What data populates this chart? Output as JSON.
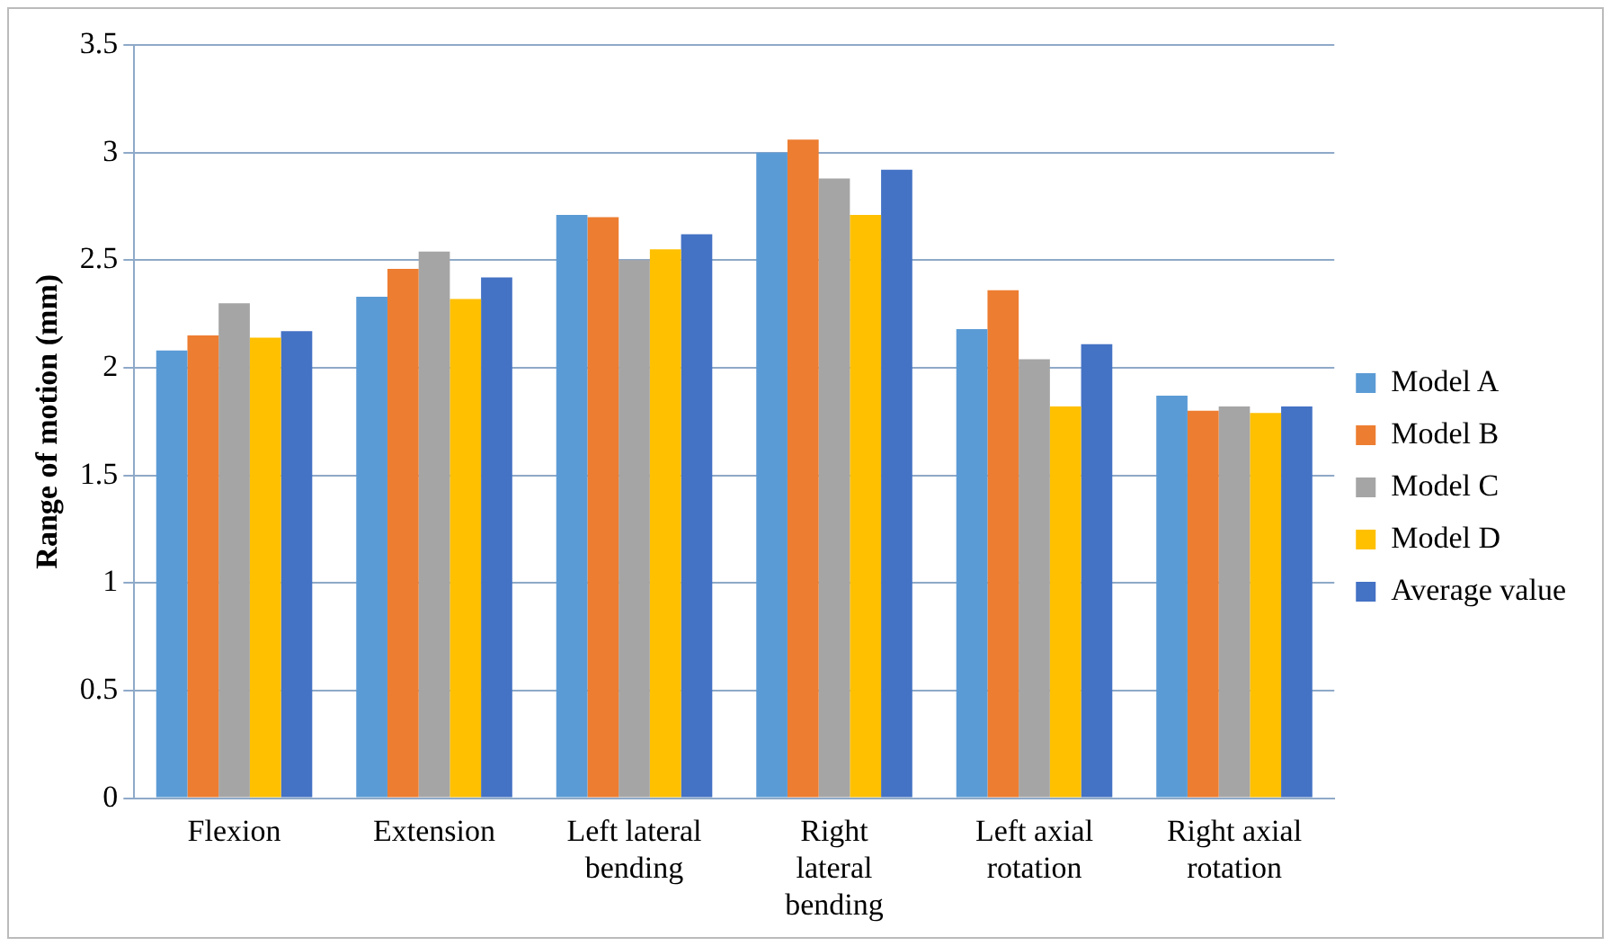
{
  "chart_data": {
    "type": "bar",
    "ylabel": "Range of motion (mm)",
    "categories": [
      "Flexion",
      "Extension",
      "Left lateral bending",
      "Right lateral bending",
      "Left axial rotation",
      "Right axial rotation"
    ],
    "series": [
      {
        "name": "Model A",
        "color": "#5b9bd5",
        "values": [
          2.08,
          2.33,
          2.71,
          3.0,
          2.18,
          1.87
        ]
      },
      {
        "name": "Model B",
        "color": "#ed7d31",
        "values": [
          2.15,
          2.46,
          2.7,
          3.06,
          2.36,
          1.8
        ]
      },
      {
        "name": "Model C",
        "color": "#a5a5a5",
        "values": [
          2.3,
          2.54,
          2.5,
          2.88,
          2.04,
          1.82
        ]
      },
      {
        "name": "Model D",
        "color": "#ffc000",
        "values": [
          2.14,
          2.32,
          2.55,
          2.71,
          1.82,
          1.79
        ]
      },
      {
        "name": "Average value",
        "color": "#4472c4",
        "values": [
          2.17,
          2.42,
          2.62,
          2.92,
          2.11,
          1.82
        ]
      }
    ],
    "ylim": [
      0,
      3.5
    ],
    "yticks": [
      0,
      0.5,
      1,
      1.5,
      2,
      2.5,
      3,
      3.5
    ],
    "grid": "y",
    "legend": "right"
  }
}
